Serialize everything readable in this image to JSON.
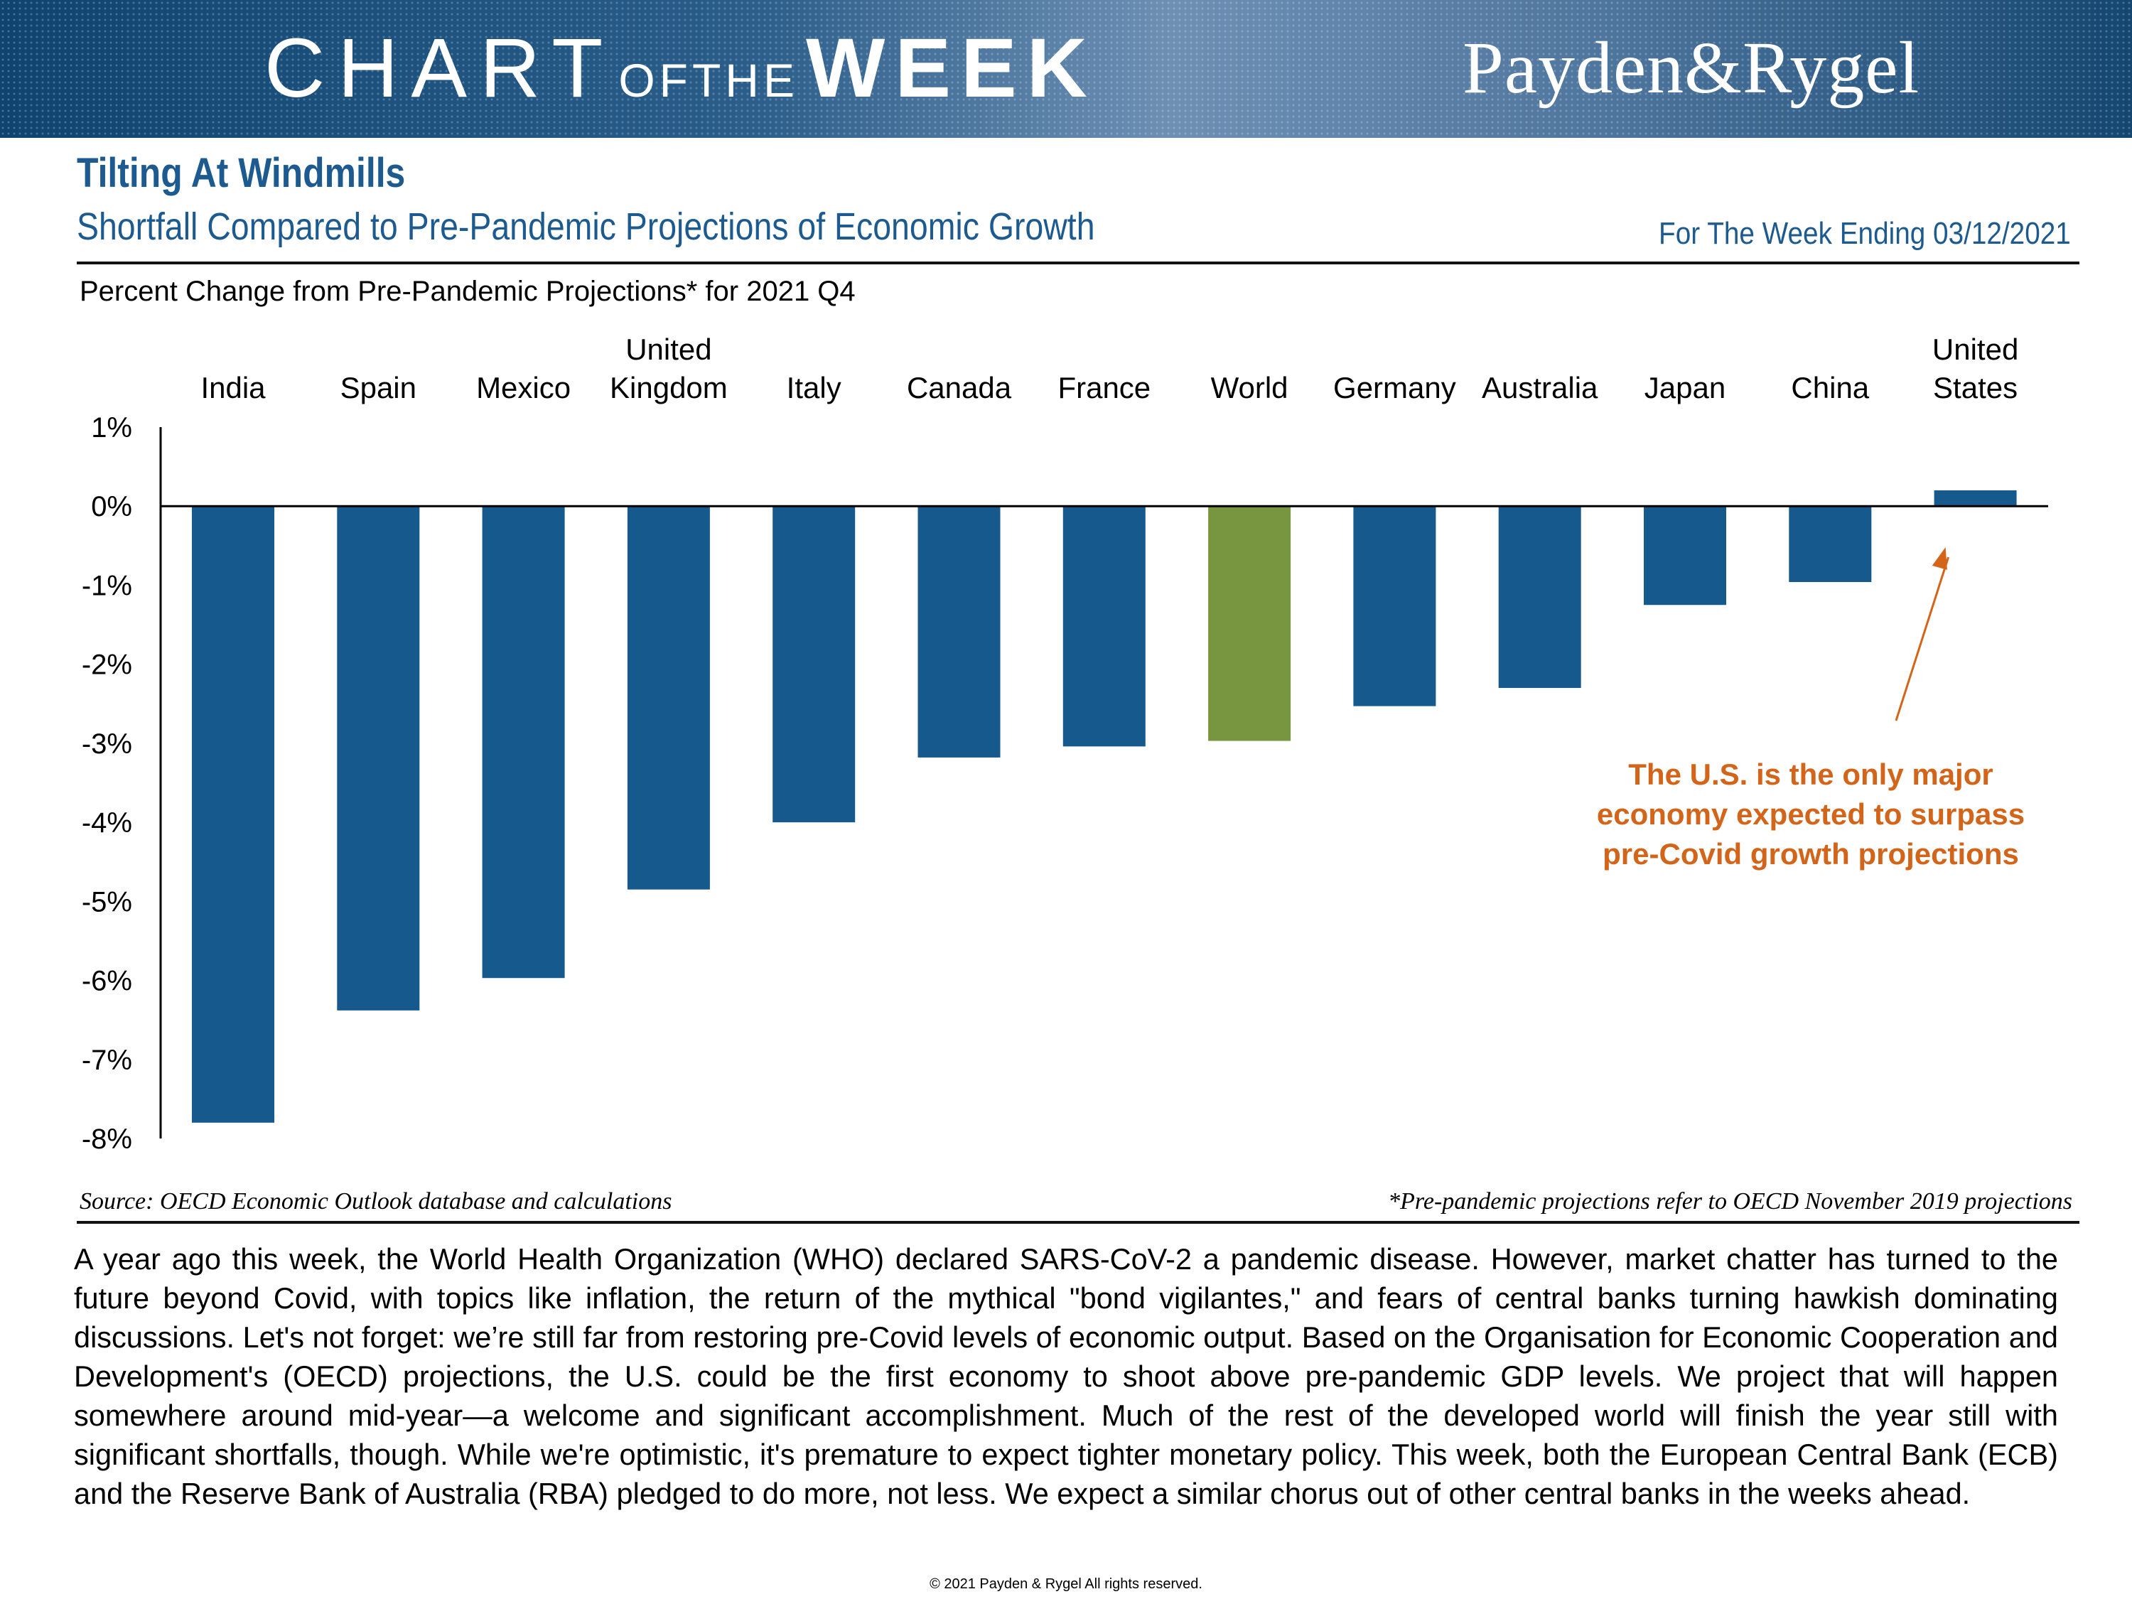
{
  "banner": {
    "chart_word": "CHART",
    "ofthe_word": "OFTHE",
    "week_word": "WEEK",
    "logo": "Payden&Rygel"
  },
  "header": {
    "title": "Tilting At Windmills",
    "subtitle": "Shortfall Compared to Pre-Pandemic Projections of Economic Growth",
    "week_ending": "For The Week Ending 03/12/2021"
  },
  "chart_data": {
    "type": "bar",
    "title": "Percent Change from Pre-Pandemic Projections* for 2021 Q4",
    "categories": [
      [
        "India"
      ],
      [
        "Spain"
      ],
      [
        "Mexico"
      ],
      [
        "United",
        "Kingdom"
      ],
      [
        "Italy"
      ],
      [
        "Canada"
      ],
      [
        "France"
      ],
      [
        "World"
      ],
      [
        "Germany"
      ],
      [
        "Australia"
      ],
      [
        "Japan"
      ],
      [
        "China"
      ],
      [
        "United",
        "States"
      ]
    ],
    "values": [
      -7.8,
      -6.38,
      -5.97,
      -4.85,
      -4.0,
      -3.18,
      -3.04,
      -2.97,
      -2.53,
      -2.3,
      -1.25,
      -0.96,
      0.2
    ],
    "highlight_index": 7,
    "ylim": [
      -8,
      1
    ],
    "yticks": [
      1,
      0,
      -1,
      -2,
      -3,
      -4,
      -5,
      -6,
      -7,
      -8
    ],
    "ytick_labels": [
      "1%",
      "0%",
      "-1%",
      "-2%",
      "-3%",
      "-4%",
      "-5%",
      "-6%",
      "-7%",
      "-8%"
    ],
    "colors": {
      "bar": "#165a8d",
      "highlight": "#789640",
      "annotation": "#d3651a",
      "axis": "#000000"
    },
    "annotation": {
      "lines": [
        "The U.S. is the only major",
        "economy expected to surpass",
        "pre-Covid growth projections"
      ],
      "points_to_index": 12
    },
    "xlabel": "",
    "ylabel": ""
  },
  "footer": {
    "source": "Source: OECD Economic Outlook database and calculations",
    "footnote": "*Pre-pandemic projections refer to OECD November 2019 projections",
    "body": "A year ago this week, the World Health Organization (WHO) declared SARS-CoV-2 a pandemic disease. However, market chatter has turned to the future beyond Covid, with topics like inflation, the return of the mythical \"bond vigilantes,\" and fears of central banks turning hawkish dominating discussions. Let's not forget: we’re still far from restoring pre-Covid levels of economic output. Based on the Organisation for Economic Cooperation and Development's (OECD) projections, the U.S. could be the first economy to shoot above pre-pandemic GDP levels. We project that will happen somewhere around mid-year—a welcome and significant accomplishment. Much of the rest of the developed world will finish the year still with significant shortfalls, though. While we're optimistic, it's premature to expect tighter monetary policy. This week, both the European Central Bank (ECB) and the Reserve Bank of Australia (RBA) pledged to do more, not less. We expect a similar chorus out of other central banks in the weeks ahead.",
    "copyright": "© 2021 Payden & Rygel All rights reserved."
  }
}
